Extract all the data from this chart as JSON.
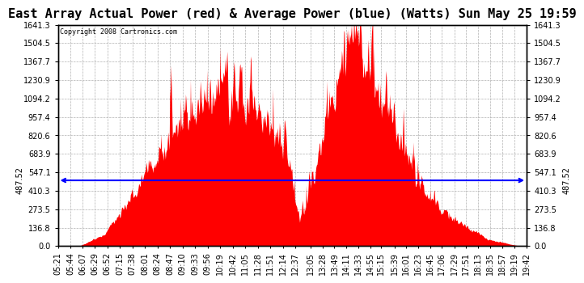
{
  "title": "East Array Actual Power (red) & Average Power (blue) (Watts) Sun May 25 19:59",
  "copyright": "Copyright 2008 Cartronics.com",
  "avg_power": 487.52,
  "y_max": 1641.3,
  "y_min": 0.0,
  "y_ticks": [
    0.0,
    136.8,
    273.5,
    410.3,
    547.1,
    683.9,
    820.6,
    957.4,
    1094.2,
    1230.9,
    1367.7,
    1504.5,
    1641.3
  ],
  "x_tick_labels": [
    "05:21",
    "05:44",
    "06:07",
    "06:29",
    "06:52",
    "07:15",
    "07:38",
    "08:01",
    "08:24",
    "08:47",
    "09:10",
    "09:33",
    "09:56",
    "10:19",
    "10:42",
    "11:05",
    "11:28",
    "11:51",
    "12:14",
    "12:37",
    "13:05",
    "13:28",
    "13:49",
    "14:11",
    "14:33",
    "14:55",
    "15:15",
    "15:39",
    "16:01",
    "16:23",
    "16:45",
    "17:06",
    "17:29",
    "17:51",
    "18:13",
    "18:35",
    "18:57",
    "19:19",
    "19:42"
  ],
  "background_color": "#ffffff",
  "plot_bg_color": "#ffffff",
  "grid_color": "#b0b0b0",
  "line_color_avg": "#0000ff",
  "fill_color": "#ff0000",
  "border_color": "#000000",
  "title_fontsize": 11,
  "tick_fontsize": 7,
  "avg_label_fontsize": 7
}
